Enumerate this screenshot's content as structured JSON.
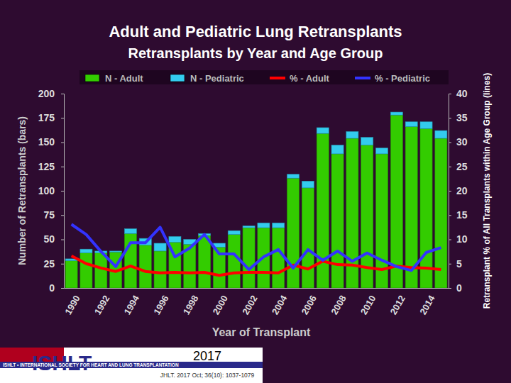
{
  "chart_data": {
    "type": "bar",
    "title": "Adult and Pediatric Lung Retransplants",
    "subtitle": "Retransplants by Year and Age Group",
    "x_label": "Year of Transplant",
    "y_label": "Number of Retransplants (bars)",
    "y2_label": "Retransplant % of All Transplants within Age Group (lines)",
    "annotations": [
      "ISHLT",
      "ISHLT • INTERNATIONAL SOCIETY FOR HEART AND LUNG TRANSPLANTATION",
      "2017",
      "JHLT. 2017 Oct; 36(10): 1037-1079"
    ],
    "categories": [
      "1990",
      null,
      "1992",
      null,
      "1994",
      null,
      "1996",
      null,
      "1998",
      null,
      "2000",
      null,
      "2002",
      null,
      "2004",
      null,
      "2006",
      null,
      "2008",
      null,
      "2010",
      null,
      "2012",
      null,
      "2014",
      null
    ],
    "stacked": true,
    "legend": "top",
    "grid": false,
    "ylim": [
      0,
      200
    ],
    "yticks": [
      0,
      25,
      50,
      75,
      100,
      125,
      150,
      175,
      200
    ],
    "y2lim": [
      0,
      40
    ],
    "y2ticks": [
      0,
      5,
      10,
      15,
      20,
      25,
      30,
      35,
      40
    ],
    "series": [
      {
        "name": "N - Adult",
        "type": "bar",
        "color": "#33cc00",
        "values": [
          28,
          36,
          36,
          37,
          56,
          44,
          38,
          47,
          45,
          54,
          42,
          55,
          62,
          62,
          62,
          113,
          103,
          159,
          138,
          154,
          147,
          138,
          178,
          166,
          164,
          154
        ]
      },
      {
        "name": "N - Pediatric",
        "type": "bar",
        "color": "#33ccee",
        "values": [
          2,
          4,
          2,
          1,
          5,
          7,
          8,
          6,
          5,
          2,
          4,
          4,
          2,
          5,
          5,
          4,
          7,
          6,
          9,
          7,
          8,
          6,
          3,
          5,
          7,
          8
        ]
      },
      {
        "name": "% - Adult",
        "type": "line",
        "axis": "y2",
        "color": "#ff0000",
        "values": [
          6.6,
          5,
          4.1,
          3.4,
          4.5,
          3.4,
          3.1,
          3.2,
          3.1,
          3.2,
          2.6,
          3.1,
          3.2,
          3.2,
          3.1,
          4.7,
          3.9,
          5.5,
          4.8,
          4.7,
          4.2,
          3.8,
          4.5,
          4.2,
          4.1,
          3.8
        ]
      },
      {
        "name": "% - Pediatric",
        "type": "line",
        "axis": "y2",
        "color": "#3333ff",
        "values": [
          13.1,
          11,
          7.5,
          4.4,
          9.3,
          9.3,
          12.5,
          6.4,
          8.2,
          11,
          7,
          7,
          3.8,
          6.4,
          7.9,
          4.1,
          7.9,
          5.7,
          7.6,
          5.5,
          7.2,
          5.7,
          4.4,
          3.6,
          7.3,
          8.3
        ]
      }
    ]
  }
}
